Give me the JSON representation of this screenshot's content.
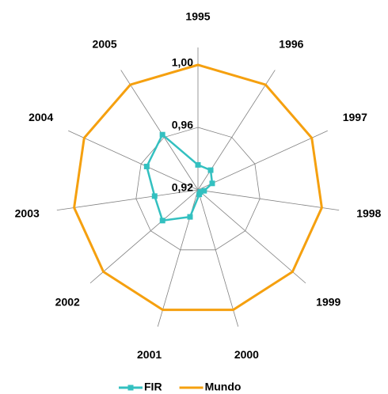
{
  "chart_data": {
    "type": "radar",
    "categories": [
      "1995",
      "1996",
      "1997",
      "1998",
      "1999",
      "2000",
      "2001",
      "2002",
      "2003",
      "2004",
      "2005"
    ],
    "ylim": [
      0.92,
      1.0
    ],
    "yticks": [
      {
        "value": 0.92,
        "label": "0,92"
      },
      {
        "value": 0.96,
        "label": "0,96"
      },
      {
        "value": 1.0,
        "label": "1,00"
      }
    ],
    "series": [
      {
        "name": "FIR",
        "color": "#33c0c0",
        "values": [
          0.936,
          0.935,
          0.93,
          0.924,
          0.922,
          0.923,
          0.938,
          0.95,
          0.948,
          0.956,
          0.962
        ]
      },
      {
        "name": "Mundo",
        "color": "#f5a00f",
        "values": [
          1.0,
          1.0,
          1.0,
          1.0,
          1.0,
          1.0,
          1.0,
          1.0,
          1.0,
          1.0,
          1.0
        ]
      }
    ],
    "grid": true,
    "legend": "bottom"
  }
}
